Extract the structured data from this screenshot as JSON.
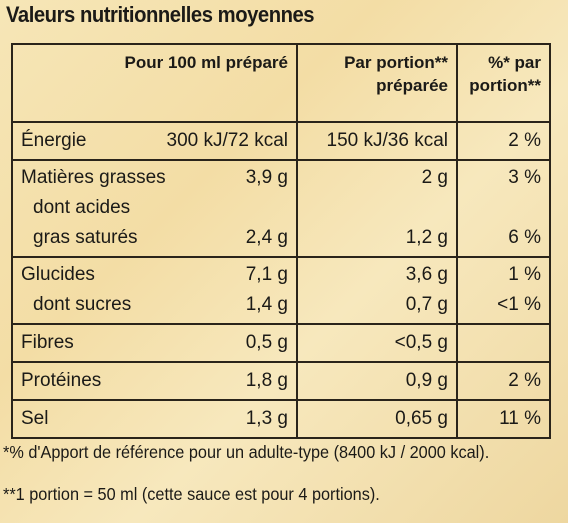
{
  "title": "Valeurs nutritionnelles moyennes",
  "headers": {
    "col1": "Pour 100 ml préparé",
    "col2_line1": "Par portion**",
    "col2_line2": "préparée",
    "col3_line1": "%* par",
    "col3_line2": "portion**"
  },
  "rows": {
    "energie": {
      "label": "Énergie",
      "per100": "300 kJ/72 kcal",
      "portion": "150 kJ/36 kcal",
      "pct": "2 %"
    },
    "mg": {
      "label": "Matières grasses",
      "per100": "3,9 g",
      "portion": "2 g",
      "pct": "3 %",
      "sub_label_1": "dont acides",
      "sub_label_2": "gras saturés",
      "sub_per100": "2,4 g",
      "sub_portion": "1,2 g",
      "sub_pct": "6 %"
    },
    "glucides": {
      "label": "Glucides",
      "per100": "7,1 g",
      "portion": "3,6 g",
      "pct": "1 %",
      "sub_label": "dont sucres",
      "sub_per100": "1,4 g",
      "sub_portion": "0,7 g",
      "sub_pct": "<1 %"
    },
    "fibres": {
      "label": "Fibres",
      "per100": "0,5 g",
      "portion": "<0,5 g",
      "pct": ""
    },
    "proteines": {
      "label": "Protéines",
      "per100": "1,8 g",
      "portion": "0,9 g",
      "pct": "2 %"
    },
    "sel": {
      "label": "Sel",
      "per100": "1,3 g",
      "portion": "0,65 g",
      "pct": "11 %"
    }
  },
  "footnotes": {
    "f1": "*% d'Apport de référence pour un adulte-type (8400 kJ / 2000 kcal).",
    "f2": "**1 portion = 50 ml (cette sauce est pour 4 portions)."
  }
}
